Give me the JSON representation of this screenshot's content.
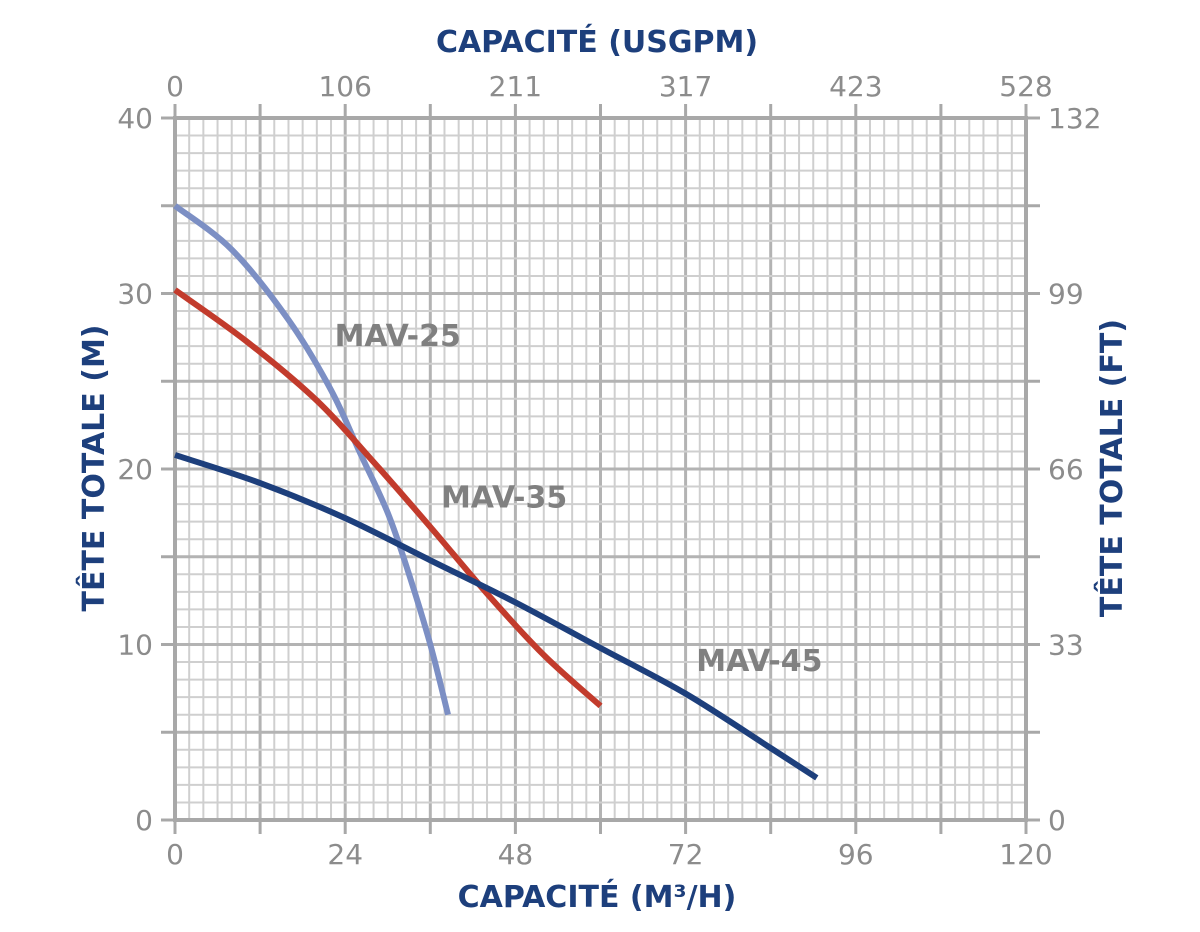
{
  "chart_data": {
    "type": "line",
    "xlabel_bottom": "CAPACITÉ (M³/H)",
    "xlabel_top": "CAPACITÉ (USGPM)",
    "ylabel_left": "TÊTE TOTALE (M)",
    "ylabel_right": "TÊTE TOTALE (FT)",
    "xlim": [
      0,
      120
    ],
    "ylim": [
      0,
      40
    ],
    "x_ticks": [
      "0",
      "24",
      "48",
      "72",
      "96",
      "120"
    ],
    "x_tick_values": [
      0,
      24,
      48,
      72,
      96,
      120
    ],
    "x_top_ticks": [
      "0",
      "106",
      "211",
      "317",
      "423",
      "528"
    ],
    "y_ticks": [
      "0",
      "10",
      "20",
      "30",
      "40"
    ],
    "y_tick_values": [
      0,
      10,
      20,
      30,
      40
    ],
    "y_right_ticks": [
      "0",
      "33",
      "66",
      "99",
      "132"
    ],
    "grid": true,
    "series": [
      {
        "name": "MAV-25",
        "color": "#7c8fc4",
        "x": [
          0,
          8,
          16,
          22,
          26,
          30,
          33,
          36,
          38.5
        ],
        "y": [
          35.0,
          32.5,
          28.5,
          24.5,
          21.0,
          17.5,
          14.0,
          10.0,
          6.0
        ]
      },
      {
        "name": "MAV-35",
        "color": "#c23b2c",
        "x": [
          0,
          10,
          20,
          28,
          36,
          44,
          52,
          60
        ],
        "y": [
          30.2,
          27.3,
          23.9,
          20.4,
          16.7,
          12.9,
          9.4,
          6.5
        ]
      },
      {
        "name": "MAV-45",
        "color": "#1d3f7c",
        "x": [
          0,
          12,
          24,
          36,
          48,
          60,
          72,
          84,
          90.5
        ],
        "y": [
          20.8,
          19.2,
          17.2,
          14.8,
          12.4,
          9.8,
          7.2,
          4.1,
          2.4
        ]
      }
    ],
    "annotations": [
      {
        "text": "MAV-25",
        "x": 22.5,
        "y": 27.0
      },
      {
        "text": "MAV-35",
        "x": 37.5,
        "y": 17.8
      },
      {
        "text": "MAV-45",
        "x": 73.5,
        "y": 8.5
      }
    ]
  }
}
